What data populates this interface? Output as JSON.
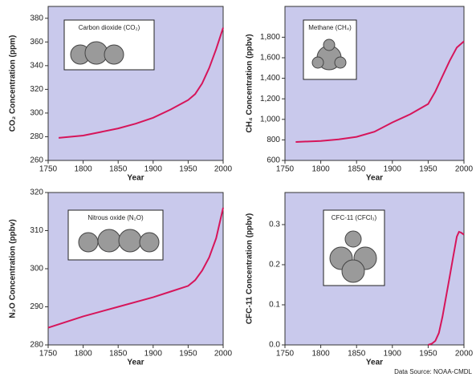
{
  "chart_data": [
    {
      "type": "line",
      "ylabel": "CO₂ Concentration (ppm)",
      "xlabel": "Year",
      "annotation": "Carbon dioxide (CO₂)",
      "x": [
        1765,
        1800,
        1825,
        1850,
        1875,
        1900,
        1925,
        1950,
        1960,
        1970,
        1980,
        1990,
        2000
      ],
      "values": [
        279,
        281,
        284,
        287,
        291,
        296,
        303,
        311,
        316,
        325,
        338,
        354,
        372
      ],
      "color": "#d6155a",
      "xlim": [
        1750,
        2000
      ],
      "ylim": [
        260,
        390
      ],
      "xticks": [
        1750,
        1800,
        1850,
        1900,
        1950,
        2000
      ],
      "yticks": [
        260,
        280,
        300,
        320,
        340,
        360,
        380
      ]
    },
    {
      "type": "line",
      "ylabel": "CH₄ Concentration (ppbv)",
      "xlabel": "Year",
      "annotation": "Methane (CH₄)",
      "x": [
        1765,
        1800,
        1825,
        1850,
        1875,
        1900,
        1925,
        1950,
        1960,
        1970,
        1980,
        1990,
        2000
      ],
      "values": [
        780,
        790,
        805,
        830,
        880,
        970,
        1050,
        1150,
        1270,
        1420,
        1570,
        1700,
        1760
      ],
      "color": "#d6155a",
      "xlim": [
        1750,
        2000
      ],
      "ylim": [
        600,
        2100
      ],
      "xticks": [
        1750,
        1800,
        1850,
        1900,
        1950,
        2000
      ],
      "yticks": [
        600,
        800,
        {
          "value": 1000,
          "label": "1,000"
        },
        {
          "value": 1200,
          "label": "1,200"
        },
        {
          "value": 1400,
          "label": "1,400"
        },
        {
          "value": 1600,
          "label": "1,600"
        },
        {
          "value": 1800,
          "label": "1,800"
        }
      ]
    },
    {
      "type": "line",
      "ylabel": "N₂O Concentration (ppbv)",
      "xlabel": "Year",
      "annotation": "Nitrous oxide (N₂O)",
      "x": [
        1750,
        1800,
        1850,
        1900,
        1925,
        1950,
        1960,
        1970,
        1980,
        1990,
        2000
      ],
      "values": [
        284.5,
        287.5,
        290,
        292.5,
        294,
        295.5,
        297,
        299.5,
        303,
        308,
        316
      ],
      "color": "#d6155a",
      "xlim": [
        1750,
        2000
      ],
      "ylim": [
        280,
        320
      ],
      "xticks": [
        1750,
        1800,
        1850,
        1900,
        1950,
        2000
      ],
      "yticks": [
        280,
        290,
        300,
        310,
        320
      ]
    },
    {
      "type": "line",
      "ylabel": "CFC-11 Concentration (ppbv)",
      "xlabel": "Year",
      "annotation": "CFC-11 (CFCl₃)",
      "x": [
        1950,
        1955,
        1960,
        1965,
        1970,
        1975,
        1980,
        1985,
        1990,
        1993,
        1996,
        2000
      ],
      "values": [
        0,
        0.003,
        0.01,
        0.03,
        0.07,
        0.12,
        0.17,
        0.22,
        0.27,
        0.282,
        0.28,
        0.275
      ],
      "color": "#d6155a",
      "xlim": [
        1750,
        2000
      ],
      "ylim": [
        0,
        0.38
      ],
      "xticks": [
        1750,
        1800,
        1850,
        1900,
        1950,
        2000
      ],
      "yticks": [
        {
          "value": 0,
          "label": "0.0"
        },
        0.1,
        0.2,
        0.3
      ]
    }
  ],
  "source": "Data Source: NOAA-CMDL"
}
